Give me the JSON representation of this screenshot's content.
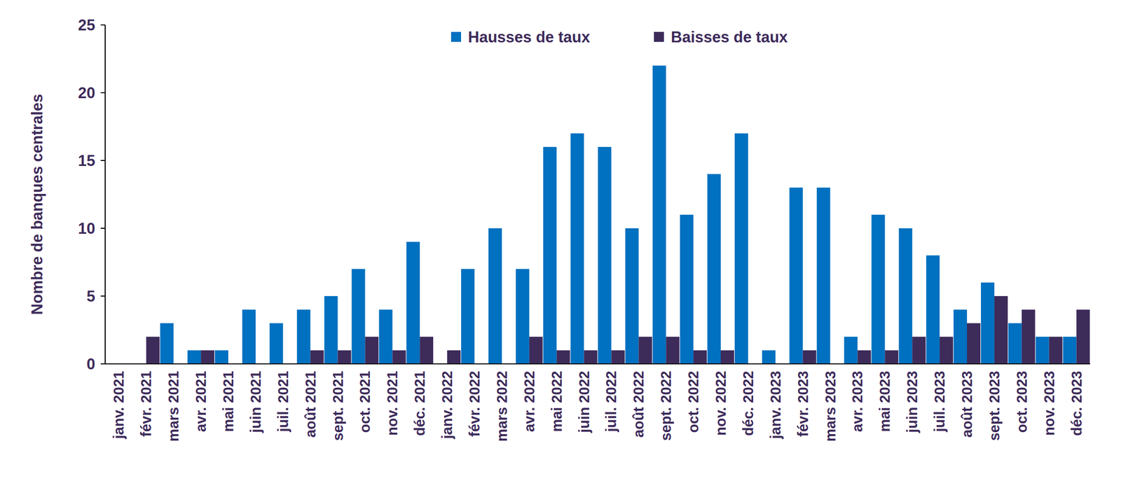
{
  "chart_data": {
    "type": "bar",
    "y_label": "Nombre de banques centrales",
    "categories": [
      "janv. 2021",
      "févr. 2021",
      "mars 2021",
      "avr. 2021",
      "mai 2021",
      "juin 2021",
      "juil. 2021",
      "août 2021",
      "sept. 2021",
      "oct. 2021",
      "nov. 2021",
      "déc. 2021",
      "janv. 2022",
      "févr. 2022",
      "mars 2022",
      "avr. 2022",
      "mai 2022",
      "juin 2022",
      "juil. 2022",
      "août 2022",
      "sept. 2022",
      "oct. 2022",
      "nov. 2022",
      "déc. 2022",
      "janv. 2023",
      "févr. 2023",
      "mars 2023",
      "avr. 2023",
      "mai 2023",
      "juin 2023",
      "juil. 2023",
      "août 2023",
      "sept. 2023",
      "oct. 2023",
      "nov. 2023",
      "déc. 2023"
    ],
    "series": [
      {
        "name": "Hausses de taux",
        "color": "#0070c0",
        "values": [
          0,
          0,
          3,
          1,
          1,
          4,
          3,
          4,
          5,
          7,
          4,
          9,
          0,
          7,
          10,
          7,
          16,
          17,
          16,
          10,
          22,
          11,
          14,
          17,
          1,
          13,
          13,
          2,
          11,
          10,
          8,
          4,
          6,
          3,
          2,
          2
        ]
      },
      {
        "name": "Baisses de taux",
        "color": "#3d2b5a",
        "values": [
          0,
          2,
          0,
          1,
          0,
          0,
          0,
          1,
          1,
          2,
          1,
          2,
          1,
          0,
          0,
          2,
          1,
          1,
          1,
          2,
          2,
          1,
          1,
          0,
          0,
          1,
          0,
          1,
          1,
          2,
          2,
          3,
          5,
          4,
          2,
          4
        ]
      }
    ],
    "ylim": [
      0,
      25
    ],
    "yticks": [
      0,
      5,
      10,
      15,
      20,
      25
    ],
    "grid": false,
    "legend": "top"
  }
}
